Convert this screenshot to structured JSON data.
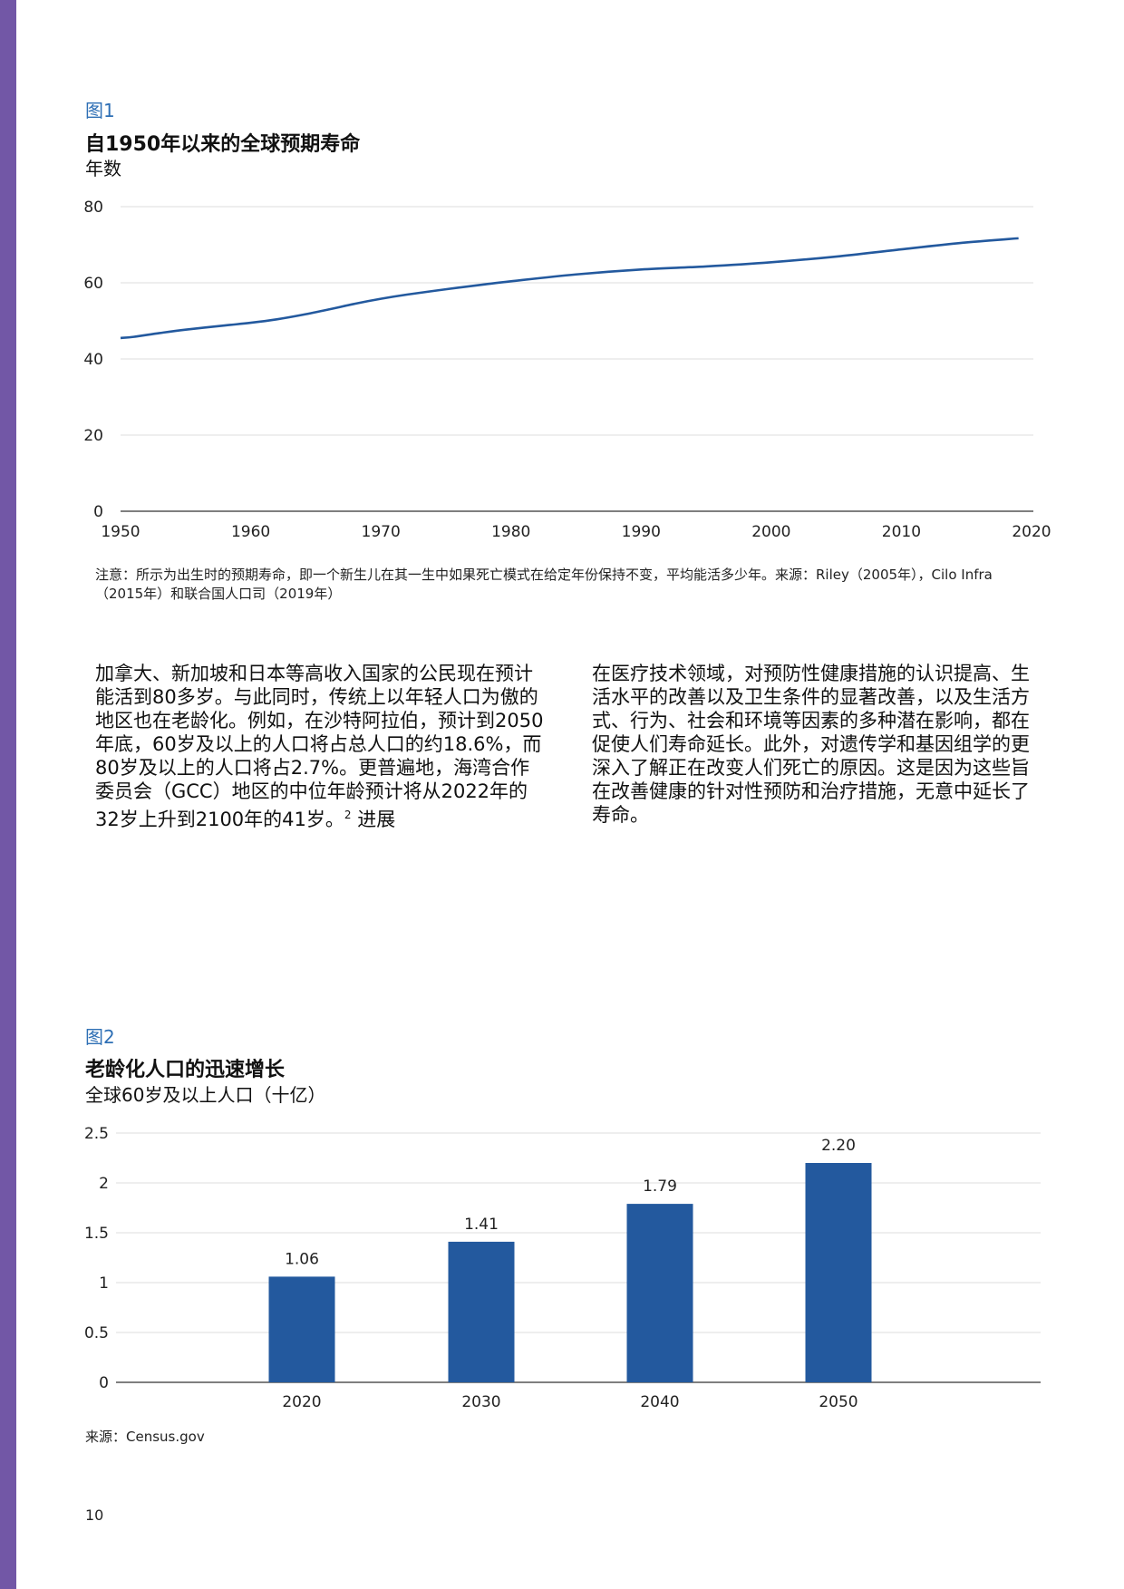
{
  "figure1": {
    "label": "图1",
    "title": "自1950年以来的全球预期寿命",
    "subtitle": "年数",
    "note": "注意：所示为出生时的预期寿命，即一个新生儿在其一生中如果死亡模式在给定年份保持不变，平均能活多少年。来源：Riley（2005年），Cilo Infra（2015年）和联合国人口司（2019年）"
  },
  "figure2": {
    "label": "图2",
    "title": "老龄化人口的迅速增长",
    "subtitle": "全球60岁及以上人口（十亿）",
    "source": "来源：Census.gov"
  },
  "body": {
    "left_text": "加拿大、新加坡和日本等高收入国家的公民现在预计能活到80多岁。与此同时，传统上以年轻人口为傲的地区也在老龄化。例如，在沙特阿拉伯，预计到2050年底，60岁及以上的人口将占总人口的约18.6%，而80岁及以上的人口将占2.7%。更普遍地，海湾合作委员会（GCC）地区的中位年龄预计将从2022年的32岁上升到2100年的41岁。",
    "left_footnote": "2",
    "left_tail": " 进展",
    "right_text": "在医疗技术领域，对预防性健康措施的认识提高、生活水平的改善以及卫生条件的显著改善，以及生活方式、行为、社会和环境等因素的多种潜在影响，都在促使人们寿命延长。此外，对遗传学和基因组学的更深入了解正在改变人们死亡的原因。这是因为这些旨在改善健康的针对性预防和治疗措施，无意中延长了寿命。"
  },
  "page_number": "10",
  "colors": {
    "accent": "#2e6fb5",
    "sidebar": "#7257a6",
    "line": "#23599e",
    "bar": "#23599e"
  },
  "chart_data": [
    {
      "type": "line",
      "title": "自1950年以来的全球预期寿命",
      "ylabel": "年数",
      "xlim": [
        1950,
        2020
      ],
      "ylim": [
        0,
        80
      ],
      "y_ticks": [
        0,
        20,
        40,
        60,
        80
      ],
      "x_ticks": [
        1950,
        1960,
        1970,
        1980,
        1990,
        2000,
        2010,
        2020
      ],
      "grid": true,
      "series": [
        {
          "x": [
            1950,
            1951,
            1953,
            1955,
            1958,
            1960,
            1962,
            1964,
            1966,
            1968,
            1970,
            1972,
            1975,
            1978,
            1980,
            1985,
            1990,
            1995,
            2000,
            2005,
            2010,
            2015,
            2019
          ],
          "values": [
            45.5,
            45.8,
            46.8,
            47.7,
            48.8,
            49.5,
            50.4,
            51.6,
            53.0,
            54.5,
            55.8,
            56.9,
            58.3,
            59.6,
            60.4,
            62.2,
            63.5,
            64.3,
            65.4,
            66.9,
            68.8,
            70.6,
            71.7
          ]
        }
      ]
    },
    {
      "type": "bar",
      "title": "老龄化人口的迅速增长",
      "ylabel": "全球60岁及以上人口（十亿）",
      "categories": [
        "2020",
        "2030",
        "2040",
        "2050"
      ],
      "values": [
        1.06,
        1.41,
        1.79,
        2.2
      ],
      "value_labels": [
        "1.06",
        "1.41",
        "1.79",
        "2.20"
      ],
      "y_ticks": [
        "0",
        "0.5",
        "1",
        "1.5",
        "2",
        "2.5"
      ],
      "ylim": [
        0,
        2.5
      ],
      "grid": true
    }
  ]
}
